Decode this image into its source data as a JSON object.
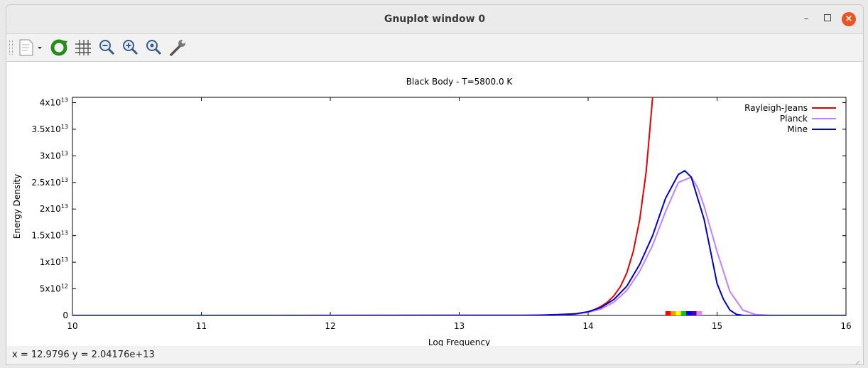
{
  "window": {
    "title": "Gnuplot window 0"
  },
  "toolbar": {
    "items": [
      "export-icon",
      "replot-icon",
      "grid-icon",
      "zoom-out-icon",
      "zoom-in-icon",
      "zoom-reset-icon",
      "settings-icon"
    ]
  },
  "status": {
    "text": "x = 12.9796 y = 2.04176e+13"
  },
  "chart_data": {
    "type": "line",
    "title": "Black Body - T=5800.0 K",
    "xlabel": "Log Frequency",
    "ylabel": "Energy Density",
    "xlim": [
      10,
      16
    ],
    "ylim": [
      0,
      41000000000000.0
    ],
    "xticks": [
      {
        "v": 10,
        "label": "10"
      },
      {
        "v": 11,
        "label": "11"
      },
      {
        "v": 12,
        "label": "12"
      },
      {
        "v": 13,
        "label": "13"
      },
      {
        "v": 14,
        "label": "14"
      },
      {
        "v": 15,
        "label": "15"
      },
      {
        "v": 16,
        "label": "16"
      }
    ],
    "yticks": [
      {
        "v": 0,
        "m": "0",
        "e": ""
      },
      {
        "v": 5000000000000.0,
        "m": "5x10",
        "e": "12"
      },
      {
        "v": 10000000000000.0,
        "m": "1x10",
        "e": "13"
      },
      {
        "v": 15000000000000.0,
        "m": "1.5x10",
        "e": "13"
      },
      {
        "v": 20000000000000.0,
        "m": "2x10",
        "e": "13"
      },
      {
        "v": 25000000000000.0,
        "m": "2.5x10",
        "e": "13"
      },
      {
        "v": 30000000000000.0,
        "m": "3x10",
        "e": "13"
      },
      {
        "v": 35000000000000.0,
        "m": "3.5x10",
        "e": "13"
      },
      {
        "v": 40000000000000.0,
        "m": "4x10",
        "e": "13"
      }
    ],
    "legend_position": "top-right",
    "series": [
      {
        "name": "Rayleigh-Jeans",
        "color": "#e60000",
        "x": [
          10,
          13.5,
          13.8,
          13.9,
          14.0,
          14.05,
          14.1,
          14.15,
          14.2,
          14.25,
          14.3,
          14.35,
          14.4,
          14.45,
          14.5
        ],
        "y": [
          0,
          10000000000.0,
          150000000000.0,
          300000000000.0,
          700000000000.0,
          1100000000000.0,
          1700000000000.0,
          2500000000000.0,
          3700000000000.0,
          5400000000000.0,
          8000000000000.0,
          12000000000000.0,
          18000000000000.0,
          27000000000000.0,
          41000000000000.0
        ]
      },
      {
        "name": "Planck",
        "color": "#c080ff",
        "x": [
          10,
          13.6,
          13.8,
          13.9,
          14.0,
          14.1,
          14.2,
          14.3,
          14.4,
          14.5,
          14.6,
          14.7,
          14.8,
          14.85,
          14.9,
          15.0,
          15.1,
          15.2,
          15.3,
          15.4,
          16
        ],
        "y": [
          0,
          20000000000.0,
          150000000000.0,
          250000000000.0,
          600000000000.0,
          1200000000000.0,
          2500000000000.0,
          4700000000000.0,
          8300000000000.0,
          13200000000000.0,
          19500000000000.0,
          25000000000000.0,
          26000000000000.0,
          24000000000000.0,
          20500000000000.0,
          12000000000000.0,
          4500000000000.0,
          1000000000000.0,
          150000000000.0,
          10000000000.0,
          0
        ]
      },
      {
        "name": "Mine",
        "color": "#0000cc",
        "x": [
          10,
          13.6,
          13.8,
          13.9,
          14.0,
          14.1,
          14.2,
          14.3,
          14.4,
          14.5,
          14.6,
          14.7,
          14.75,
          14.8,
          14.9,
          15.0,
          15.05,
          15.1,
          15.15,
          15.2,
          16
        ],
        "y": [
          0,
          20000000000.0,
          200000000000.0,
          300000000000.0,
          700000000000.0,
          1500000000000.0,
          3000000000000.0,
          5500000000000.0,
          9600000000000.0,
          15000000000000.0,
          22000000000000.0,
          26500000000000.0,
          27200000000000.0,
          26000000000000.0,
          18000000000000.0,
          6000000000000.0,
          3000000000000.0,
          1000000000000.0,
          200000000000.0,
          20000000000.0,
          0
        ]
      }
    ],
    "spectrum_band": {
      "x_start": 14.6,
      "x_end": 14.88,
      "colors": [
        "#ff0000",
        "#ff9900",
        "#ffff00",
        "#00cc00",
        "#0000ff",
        "#4b00a0",
        "#ee82ee"
      ]
    }
  }
}
